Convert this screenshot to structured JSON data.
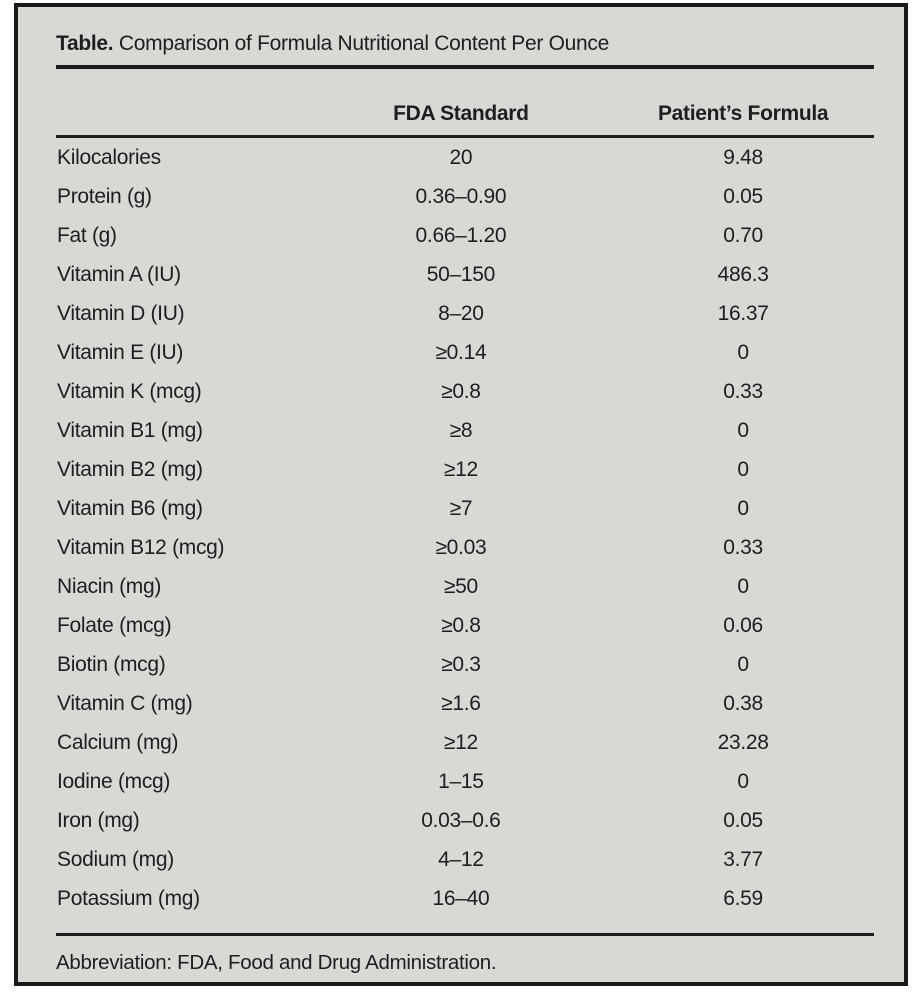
{
  "colors": {
    "page_background": "#ffffff",
    "panel_background": "#d8d8d5",
    "border_and_rules": "#191919",
    "text": "#1e1e1e"
  },
  "table": {
    "title_label": "Table.",
    "title_text": "Comparison of Formula Nutritional Content Per Ounce",
    "columns": [
      "",
      "FDA Standard",
      "Patient’s Formula"
    ],
    "rows": [
      {
        "label": "Kilocalories",
        "fda": "20",
        "patient": "9.48"
      },
      {
        "label": "Protein (g)",
        "fda": "0.36–0.90",
        "patient": "0.05"
      },
      {
        "label": "Fat (g)",
        "fda": "0.66–1.20",
        "patient": "0.70"
      },
      {
        "label": "Vitamin A (IU)",
        "fda": "50–150",
        "patient": "486.3"
      },
      {
        "label": "Vitamin D (IU)",
        "fda": "8–20",
        "patient": "16.37"
      },
      {
        "label": "Vitamin E (IU)",
        "fda": "≥0.14",
        "patient": "0"
      },
      {
        "label": "Vitamin K (mcg)",
        "fda": "≥0.8",
        "patient": "0.33"
      },
      {
        "label": "Vitamin B1 (mg)",
        "fda": "≥8",
        "patient": "0"
      },
      {
        "label": "Vitamin B2 (mg)",
        "fda": "≥12",
        "patient": "0"
      },
      {
        "label": "Vitamin B6 (mg)",
        "fda": "≥7",
        "patient": "0"
      },
      {
        "label": "Vitamin B12 (mcg)",
        "fda": "≥0.03",
        "patient": "0.33"
      },
      {
        "label": "Niacin (mg)",
        "fda": "≥50",
        "patient": "0"
      },
      {
        "label": "Folate (mcg)",
        "fda": "≥0.8",
        "patient": "0.06"
      },
      {
        "label": "Biotin (mcg)",
        "fda": "≥0.3",
        "patient": "0"
      },
      {
        "label": "Vitamin C (mg)",
        "fda": "≥1.6",
        "patient": "0.38"
      },
      {
        "label": "Calcium (mg)",
        "fda": "≥12",
        "patient": "23.28"
      },
      {
        "label": "Iodine (mcg)",
        "fda": "1–15",
        "patient": "0"
      },
      {
        "label": "Iron (mg)",
        "fda": "0.03–0.6",
        "patient": "0.05"
      },
      {
        "label": "Sodium (mg)",
        "fda": "4–12",
        "patient": "3.77"
      },
      {
        "label": "Potassium (mg)",
        "fda": "16–40",
        "patient": "6.59"
      }
    ],
    "footnote": "Abbreviation: FDA, Food and Drug Administration."
  }
}
